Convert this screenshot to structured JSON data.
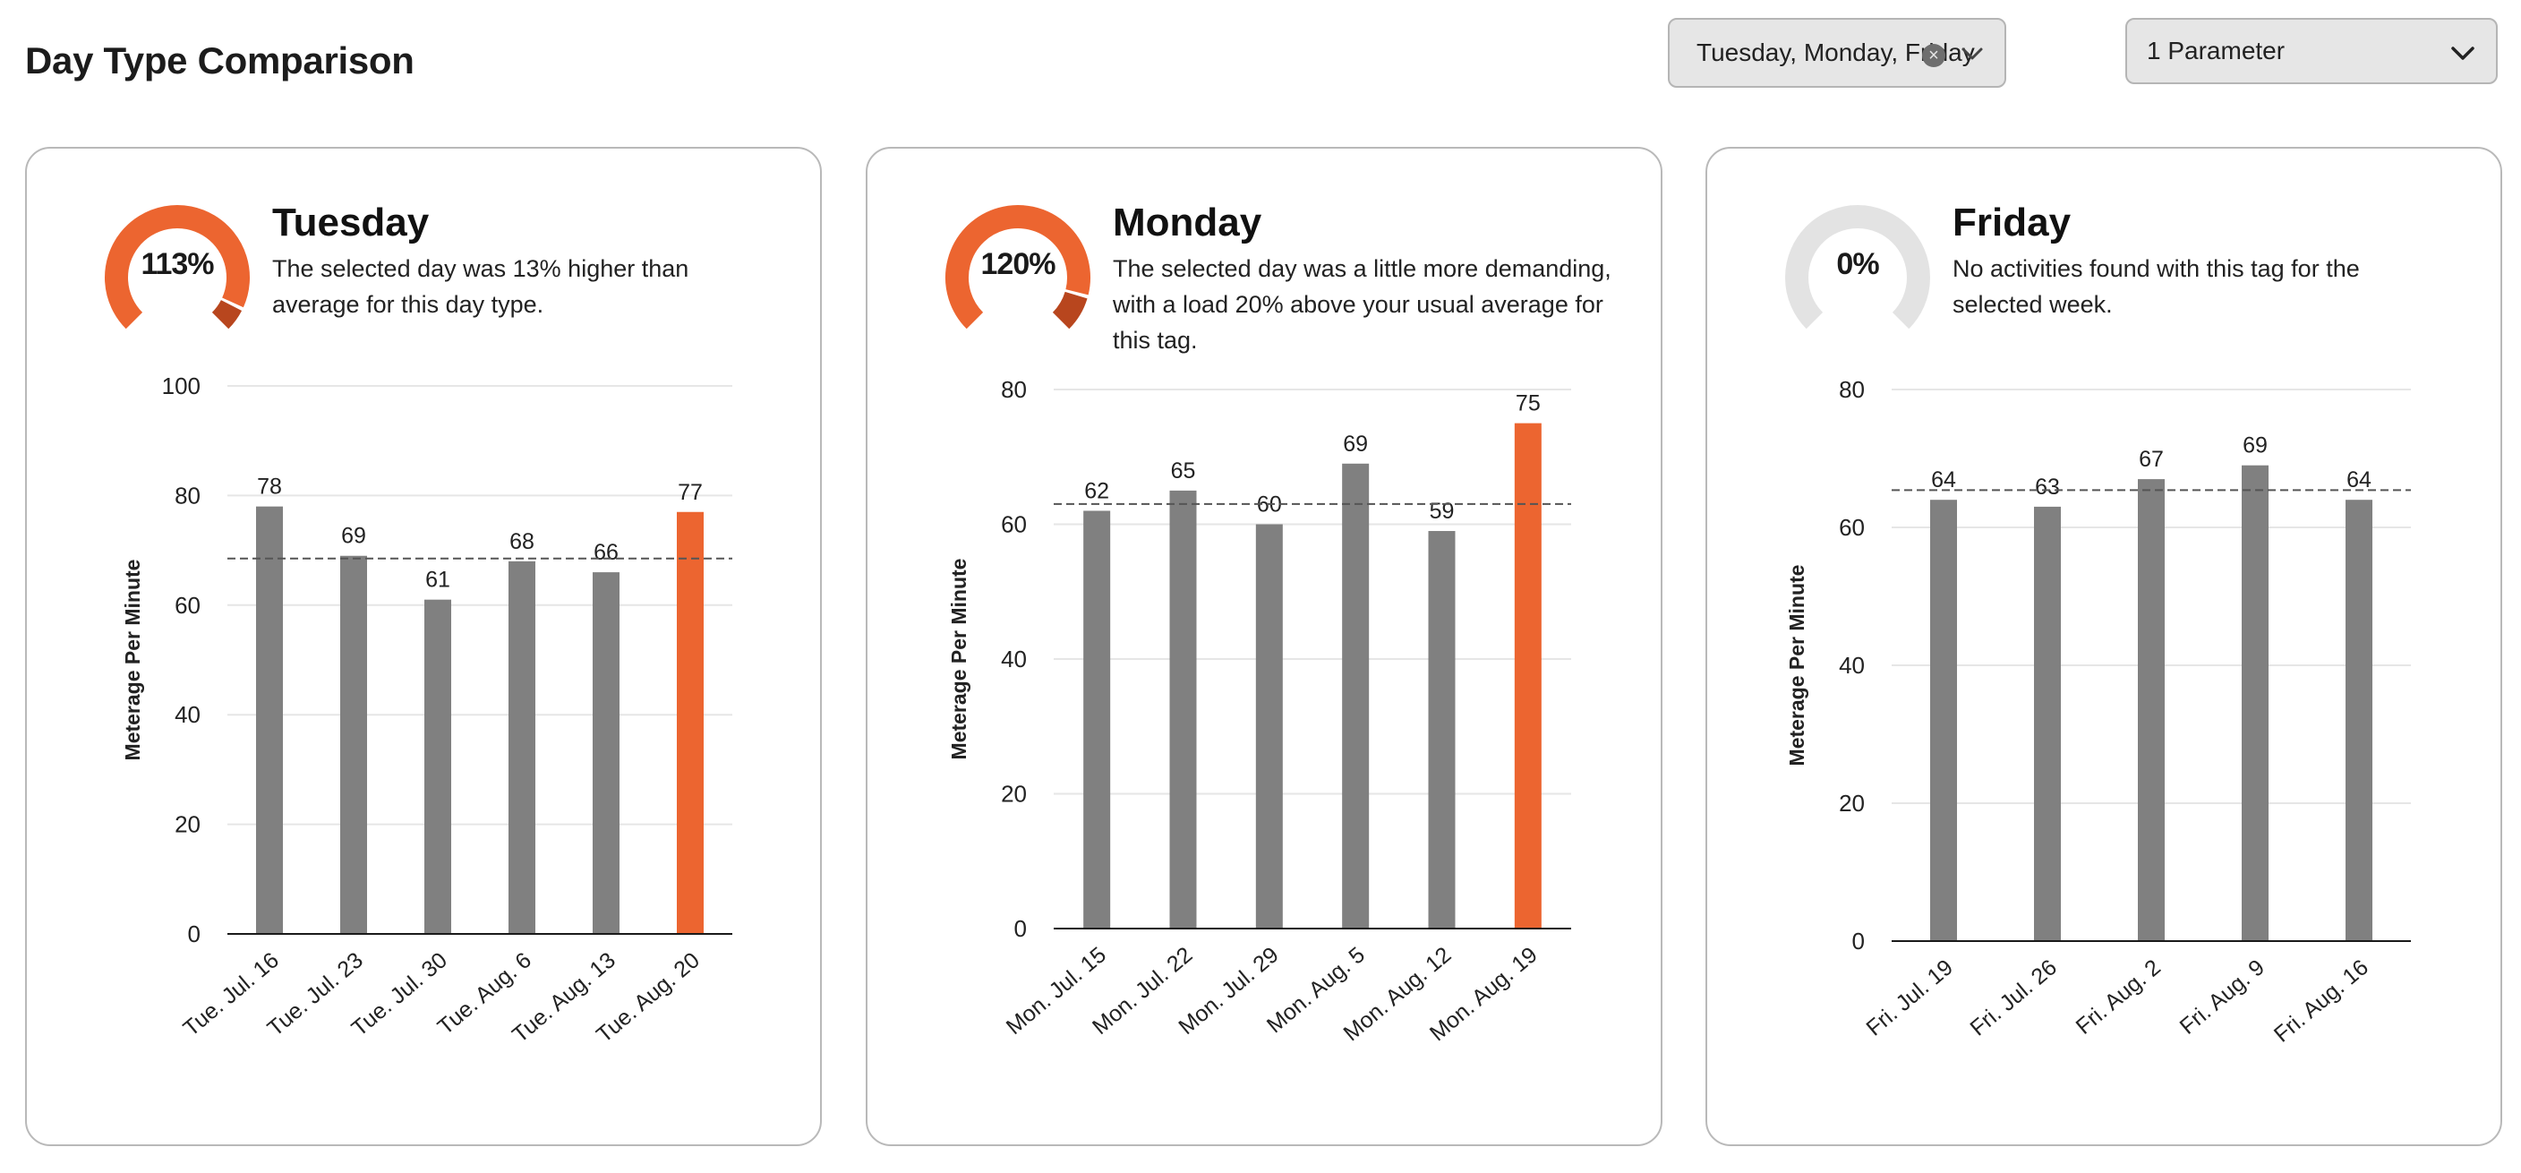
{
  "page": {
    "title": "Day Type Comparison"
  },
  "filters": {
    "days_value": "Tuesday, Monday, Friday",
    "parameter_value": "1 Parameter"
  },
  "colors": {
    "highlight": "#ec6530",
    "bar": "#808080",
    "gauge_track": "#e3e3e3",
    "gauge_accent": "#b8461e"
  },
  "cards": [
    {
      "title": "Tuesday",
      "gauge_label": "113%",
      "gauge_percent": 113,
      "description": "The selected day was 13% higher than average for this day type.",
      "chart_data": {
        "type": "bar",
        "ylabel": "Meterage Per Minute",
        "ylim": [
          0,
          100
        ],
        "yticks": [
          0,
          20,
          40,
          60,
          80,
          100
        ],
        "categories": [
          "Tue. Jul. 16",
          "Tue. Jul. 23",
          "Tue. Jul. 30",
          "Tue. Aug. 6",
          "Tue. Aug. 13",
          "Tue. Aug. 20"
        ],
        "values": [
          78,
          69,
          61,
          68,
          66,
          77
        ],
        "highlight_index": 5,
        "average_line": 68.5
      }
    },
    {
      "title": "Monday",
      "gauge_label": "120%",
      "gauge_percent": 120,
      "description": "The selected day was a little more demanding, with a load 20% above your usual average for this tag.",
      "chart_data": {
        "type": "bar",
        "ylabel": "Meterage Per Minute",
        "ylim": [
          0,
          80
        ],
        "yticks": [
          0,
          20,
          40,
          60,
          80
        ],
        "categories": [
          "Mon. Jul. 15",
          "Mon. Jul. 22",
          "Mon. Jul. 29",
          "Mon. Aug. 5",
          "Mon. Aug. 12",
          "Mon. Aug. 19"
        ],
        "values": [
          62,
          65,
          60,
          69,
          59,
          75
        ],
        "highlight_index": 5,
        "average_line": 63
      }
    },
    {
      "title": "Friday",
      "gauge_label": "0%",
      "gauge_percent": 0,
      "description": "No activities found with this tag for the selected week.",
      "chart_data": {
        "type": "bar",
        "ylabel": "Meterage Per Minute",
        "ylim": [
          0,
          80
        ],
        "yticks": [
          0,
          20,
          40,
          60,
          80
        ],
        "categories": [
          "Fri. Jul. 19",
          "Fri. Jul. 26",
          "Fri. Aug. 2",
          "Fri. Aug. 9",
          "Fri. Aug. 16"
        ],
        "values": [
          64,
          63,
          67,
          69,
          64
        ],
        "highlight_index": -1,
        "average_line": 65.4
      }
    }
  ]
}
